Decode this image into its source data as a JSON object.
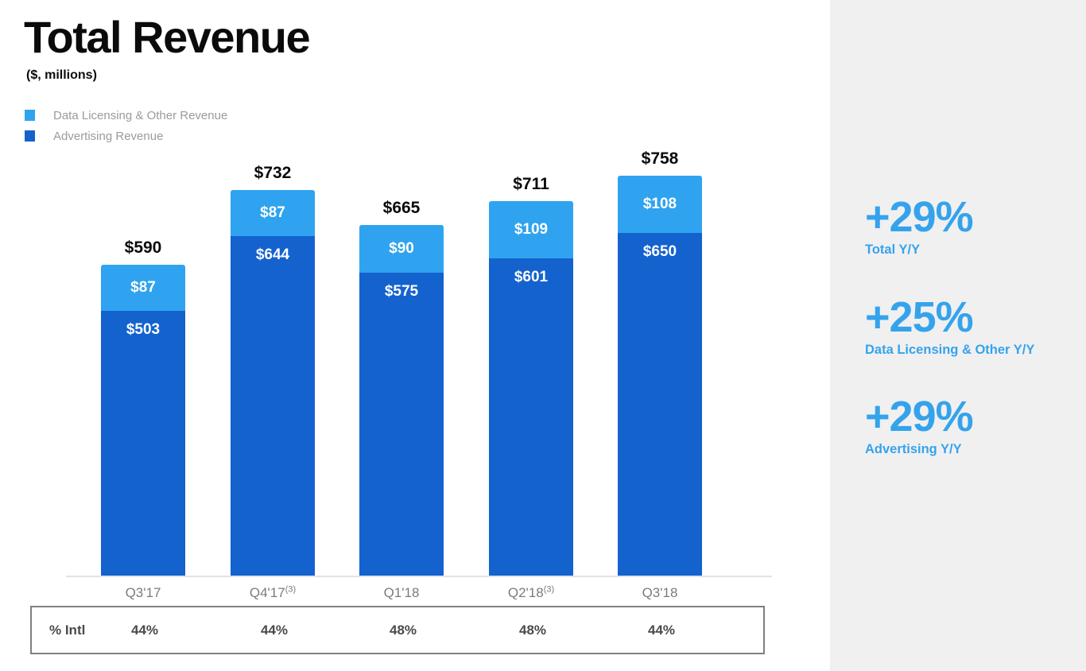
{
  "header": {
    "title": "Total Revenue",
    "subtitle": "($, millions)"
  },
  "legend": [
    {
      "label": "Data Licensing & Other Revenue",
      "color": "#2fa3ef"
    },
    {
      "label": "Advertising Revenue",
      "color": "#1362ce"
    }
  ],
  "chart_data": {
    "type": "bar",
    "stacked": true,
    "title": "Total Revenue",
    "unit": "$, millions",
    "categories": [
      "Q3'17",
      "Q4'17",
      "Q1'18",
      "Q2'18",
      "Q3'18"
    ],
    "category_footnotes": [
      "",
      "(3)",
      "",
      "(3)",
      ""
    ],
    "series": [
      {
        "name": "Advertising Revenue",
        "color": "#1362ce",
        "values": [
          503,
          644,
          575,
          601,
          650
        ]
      },
      {
        "name": "Data Licensing & Other Revenue",
        "color": "#2fa3ef",
        "values": [
          87,
          87,
          90,
          109,
          108
        ]
      }
    ],
    "totals": [
      590,
      732,
      665,
      711,
      758
    ],
    "total_labels": [
      "$590",
      "$732",
      "$665",
      "$711",
      "$758"
    ],
    "segment_labels": {
      "data_licensing": [
        "$87",
        "$87",
        "$90",
        "$109",
        "$108"
      ],
      "advertising": [
        "$503",
        "$644",
        "$575",
        "$601",
        "$650"
      ]
    },
    "ylim": [
      0,
      790
    ],
    "grid": false,
    "legend_position": "top-left"
  },
  "intl_row": {
    "label": "% Intl",
    "values": [
      "44%",
      "44%",
      "48%",
      "48%",
      "44%"
    ]
  },
  "stats": [
    {
      "value": "+29%",
      "label": "Total Y/Y"
    },
    {
      "value": "+25%",
      "label": "Data Licensing & Other Y/Y"
    },
    {
      "value": "+29%",
      "label": "Advertising Y/Y"
    }
  ],
  "colors": {
    "data_licensing_blue": "#2fa3ef",
    "advertising_blue": "#1362ce",
    "stat_text_blue": "#35a3ec",
    "panel_gray": "#f0f0f1",
    "axis_gray": "#e3e3e3",
    "label_gray": "#7b7b7b"
  }
}
